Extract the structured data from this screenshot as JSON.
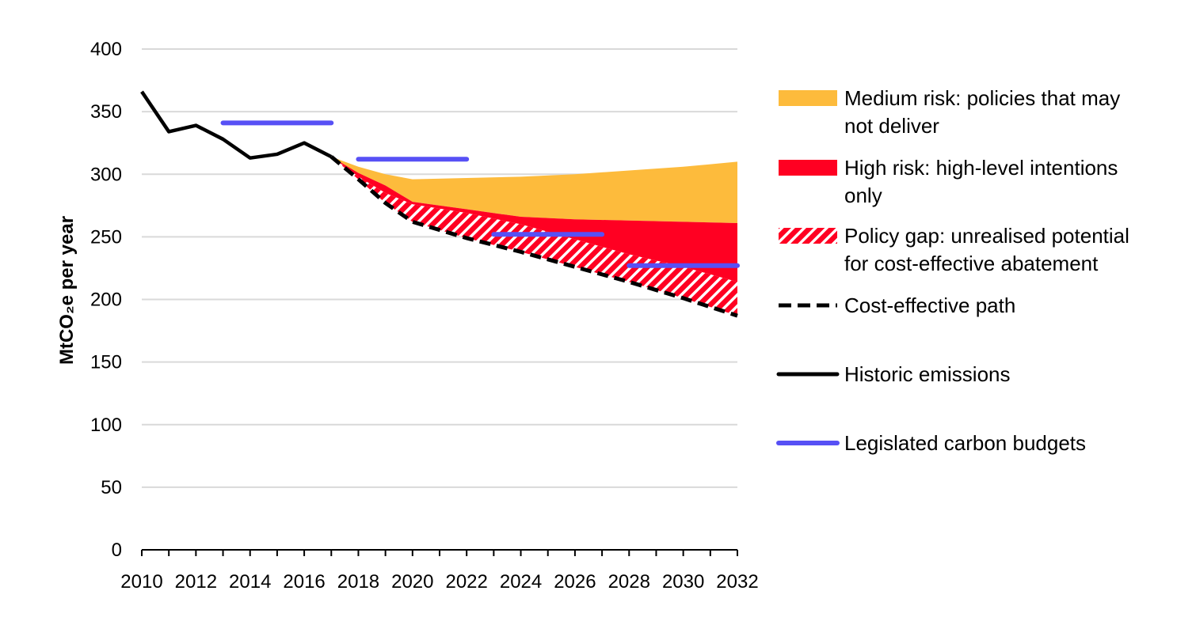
{
  "chart_data": {
    "type": "area",
    "ylabel": "MtCO₂e per year",
    "ylim": [
      0,
      400
    ],
    "xlim": [
      2010,
      2032
    ],
    "grid": true,
    "legend_position": "right",
    "x_ticks": [
      "2010",
      "2012",
      "2014",
      "2016",
      "2018",
      "2020",
      "2022",
      "2024",
      "2026",
      "2028",
      "2030",
      "2032"
    ],
    "y_ticks": [
      "0",
      "50",
      "100",
      "150",
      "200",
      "250",
      "300",
      "350",
      "400"
    ],
    "colors": {
      "medium_risk": "#FDBB3C",
      "high_risk": "#FF0022",
      "policy_gap_stripe": "#FF0022",
      "cost_effective": "#000000",
      "historic": "#000000",
      "budgets": "#5750F5"
    },
    "series": [
      {
        "name": "Historic emissions",
        "style": "solid",
        "x": [
          2010,
          2011,
          2012,
          2013,
          2014,
          2015,
          2016,
          2017
        ],
        "y": [
          366,
          334,
          339,
          328,
          313,
          316,
          325,
          314
        ]
      },
      {
        "name": "Cost-effective path",
        "style": "dashed",
        "x": [
          2017,
          2018,
          2019,
          2020,
          2022,
          2024,
          2026,
          2028,
          2030,
          2032
        ],
        "y": [
          314,
          296,
          277,
          262,
          249,
          238,
          226,
          214,
          201,
          187
        ]
      },
      {
        "name": "Policy gap: unrealised potential for cost-effective abatement",
        "style": "hatched",
        "x": [
          2017,
          2018,
          2019,
          2020,
          2022,
          2024,
          2026,
          2028,
          2030,
          2032
        ],
        "y": [
          314,
          298,
          285,
          276,
          269,
          260,
          248,
          236,
          226,
          214
        ]
      },
      {
        "name": "High risk: high-level intentions only",
        "style": "area",
        "x": [
          2017,
          2018,
          2019,
          2020,
          2022,
          2024,
          2026,
          2028,
          2030,
          2032
        ],
        "y": [
          314,
          301,
          291,
          278,
          272,
          266,
          264,
          263,
          262,
          261
        ]
      },
      {
        "name": "Medium risk: policies that may not deliver",
        "style": "area",
        "x": [
          2017,
          2018,
          2019,
          2020,
          2022,
          2024,
          2026,
          2028,
          2030,
          2032
        ],
        "y": [
          314,
          306,
          300,
          296,
          297,
          298,
          300,
          303,
          306,
          310
        ]
      },
      {
        "name": "Legislated carbon budgets",
        "style": "segments",
        "segments": [
          {
            "x": [
              2013,
              2017
            ],
            "y": 341
          },
          {
            "x": [
              2018,
              2022
            ],
            "y": 312
          },
          {
            "x": [
              2023,
              2027
            ],
            "y": 252
          },
          {
            "x": [
              2028,
              2032
            ],
            "y": 227
          }
        ]
      }
    ],
    "legend": [
      {
        "key": "medium",
        "lines": [
          "Medium risk: policies that may",
          "not deliver"
        ]
      },
      {
        "key": "high",
        "lines": [
          "High risk: high-level intentions",
          "only"
        ]
      },
      {
        "key": "gap",
        "lines": [
          "Policy gap: unrealised potential",
          "for cost-effective abatement"
        ]
      },
      {
        "key": "dashed",
        "lines": [
          "Cost-effective path"
        ]
      },
      {
        "key": "historic",
        "lines": [
          "Historic emissions"
        ]
      },
      {
        "key": "budget",
        "lines": [
          "Legislated carbon budgets"
        ]
      }
    ]
  }
}
